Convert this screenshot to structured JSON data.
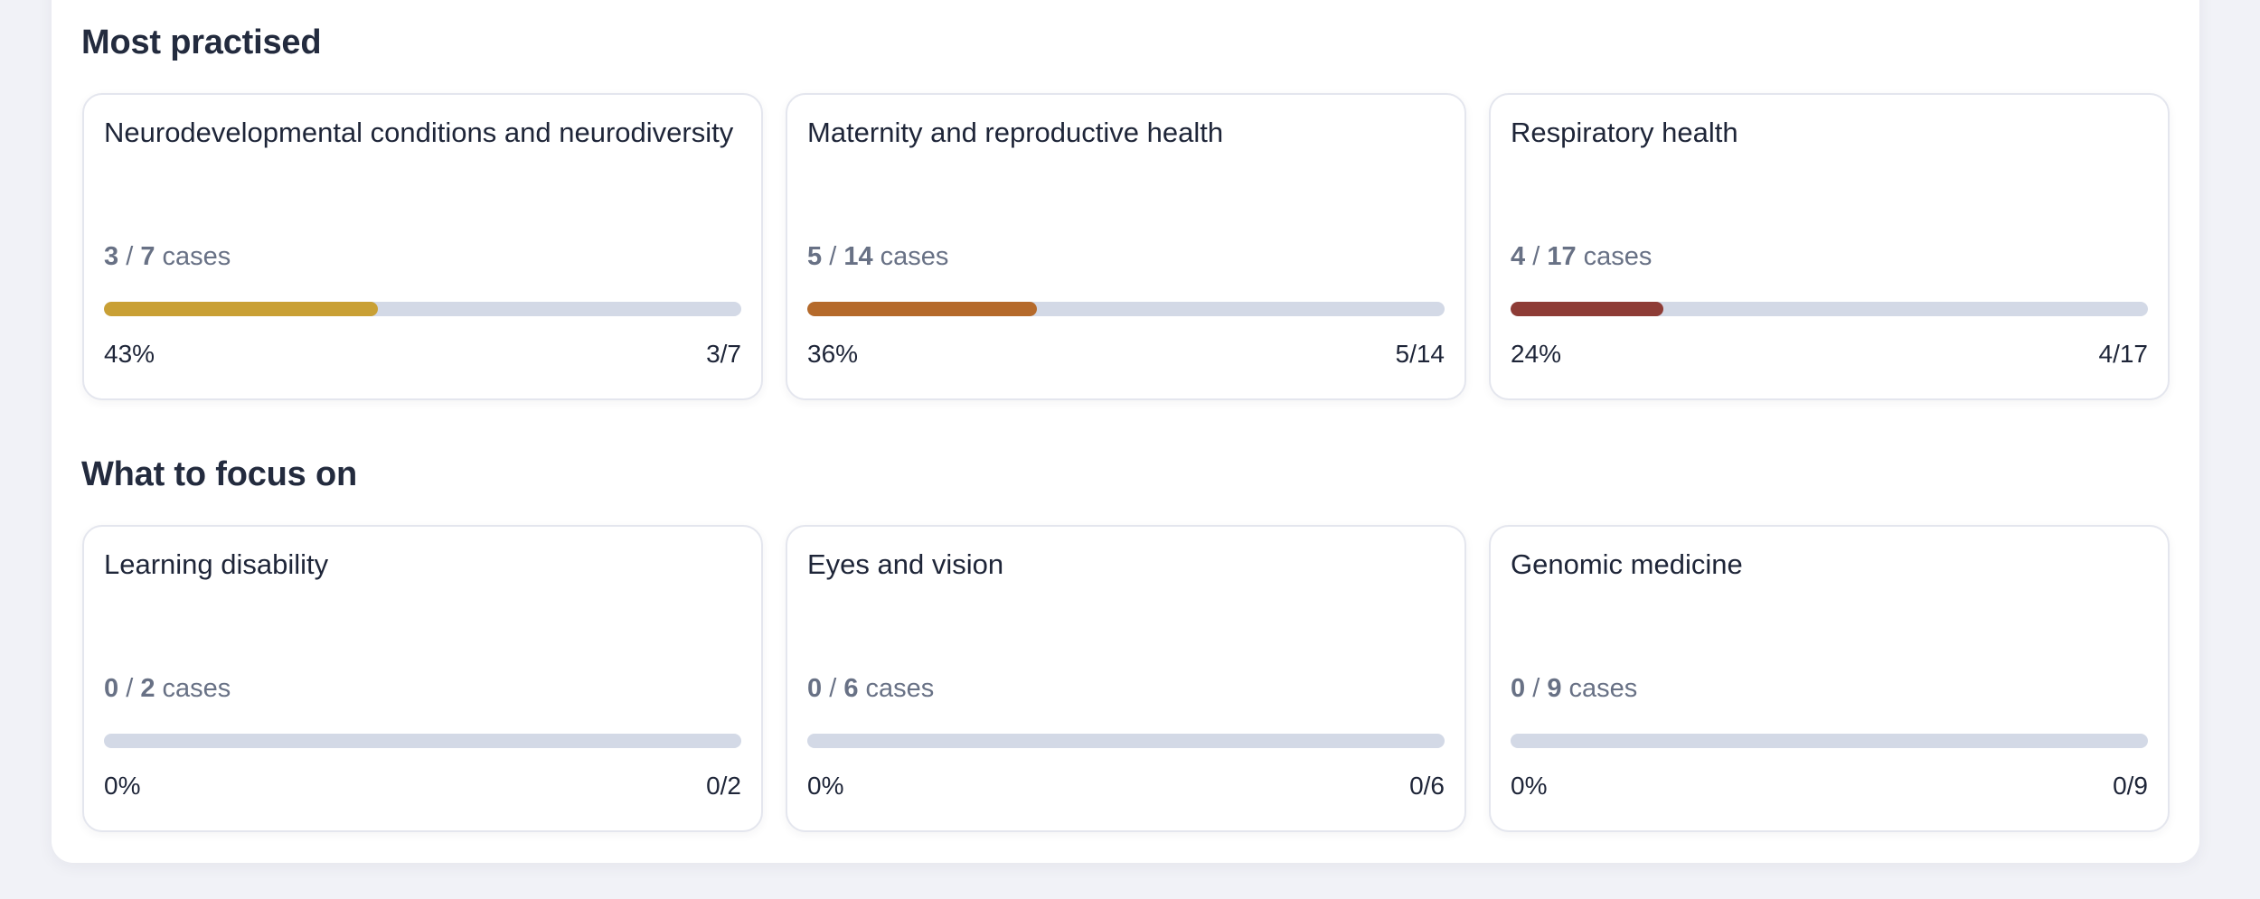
{
  "sections": [
    {
      "title": "Most practised",
      "cards": [
        {
          "title": "Neurodevelopmental conditions and neurodiversity",
          "done": "3",
          "total": "7",
          "unit": "cases",
          "percent": "43%",
          "ratio": "3/7",
          "fill_fraction": 0.43,
          "color": "#c9a035"
        },
        {
          "title": "Maternity and reproductive health",
          "done": "5",
          "total": "14",
          "unit": "cases",
          "percent": "36%",
          "ratio": "5/14",
          "fill_fraction": 0.36,
          "color": "#b56a2b"
        },
        {
          "title": "Respiratory health",
          "done": "4",
          "total": "17",
          "unit": "cases",
          "percent": "24%",
          "ratio": "4/17",
          "fill_fraction": 0.24,
          "color": "#8e3c36"
        }
      ]
    },
    {
      "title": "What to focus on",
      "cards": [
        {
          "title": "Learning disability",
          "done": "0",
          "total": "2",
          "unit": "cases",
          "percent": "0%",
          "ratio": "0/2",
          "fill_fraction": 0,
          "color": "#8e3c36"
        },
        {
          "title": "Eyes and vision",
          "done": "0",
          "total": "6",
          "unit": "cases",
          "percent": "0%",
          "ratio": "0/6",
          "fill_fraction": 0,
          "color": "#8e3c36"
        },
        {
          "title": "Genomic medicine",
          "done": "0",
          "total": "9",
          "unit": "cases",
          "percent": "0%",
          "ratio": "0/9",
          "fill_fraction": 0,
          "color": "#8e3c36"
        }
      ]
    }
  ]
}
